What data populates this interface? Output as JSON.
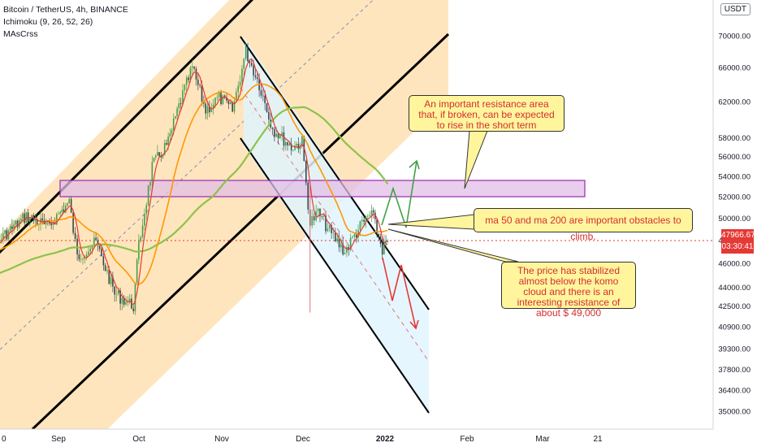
{
  "legend": {
    "symbol": "Bitcoin / TetherUS, 4h, BINANCE",
    "ichimoku": "Ichimoku (9, 26, 52, 26)",
    "mas": "MAsCrss"
  },
  "currency": "USDT",
  "last_price": {
    "value": "47966.67",
    "countdown": "03:30:41"
  },
  "chart_data": {
    "type": "line",
    "title": "",
    "yscale": "log",
    "ylim": [
      34000,
      77000
    ],
    "y_ticks": [
      "35000.00",
      "36400.00",
      "37800.00",
      "39300.00",
      "40900.00",
      "42500.00",
      "44000.00",
      "46000.00",
      "48000.00",
      "50000.00",
      "52000.00",
      "54000.00",
      "56000.00",
      "58000.00",
      "62000.00",
      "66000.00",
      "70000.00"
    ],
    "x_ticks": [
      "0",
      "Sep",
      "Oct",
      "Nov",
      "Dec",
      "2022",
      "Feb",
      "Mar",
      "21"
    ],
    "series": [
      {
        "values": [
          {
            "x": "Jul 21",
            "y": 45500
          },
          {
            "x": "Jul 28",
            "y": 46800
          },
          {
            "x": "Aug 5",
            "y": 47000
          },
          {
            "x": "Aug 12",
            "y": 48500
          },
          {
            "x": "Aug 20",
            "y": 50200
          },
          {
            "x": "Aug 28",
            "y": 49200
          },
          {
            "x": "Sep 5",
            "y": 51500
          },
          {
            "x": "Sep 8",
            "y": 46500
          },
          {
            "x": "Sep 15",
            "y": 47800
          },
          {
            "x": "Sep 22",
            "y": 43500
          },
          {
            "x": "Sep 29",
            "y": 42500
          },
          {
            "x": "Oct 1",
            "y": 47500
          },
          {
            "x": "Oct 6",
            "y": 55000
          },
          {
            "x": "Oct 12",
            "y": 57500
          },
          {
            "x": "Oct 16",
            "y": 61500
          },
          {
            "x": "Oct 21",
            "y": 66000
          },
          {
            "x": "Oct 26",
            "y": 61000
          },
          {
            "x": "Oct 31",
            "y": 62500
          },
          {
            "x": "Nov 5",
            "y": 61000
          },
          {
            "x": "Nov 10",
            "y": 68000
          },
          {
            "x": "Nov 15",
            "y": 64000
          },
          {
            "x": "Nov 20",
            "y": 59000
          },
          {
            "x": "Nov 27",
            "y": 57000
          },
          {
            "x": "Dec 1",
            "y": 57500
          },
          {
            "x": "Dec 4",
            "y": 49500
          },
          {
            "x": "Dec 7",
            "y": 50500
          },
          {
            "x": "Dec 12",
            "y": 48500
          },
          {
            "x": "Dec 17",
            "y": 47000
          },
          {
            "x": "Dec 22",
            "y": 49000
          },
          {
            "x": "Dec 27",
            "y": 50500
          },
          {
            "x": "Dec 31",
            "y": 47200
          },
          {
            "x": "Jan 2",
            "y": 47966
          }
        ]
      }
    ],
    "annotations": [
      {
        "id": "resistance",
        "text": "An important resistance area that, if broken, can be expected to rise in the short term"
      },
      {
        "id": "ma",
        "text": "ma 50 and ma 200 are important obstacles to climb."
      },
      {
        "id": "stabilized",
        "text": "The price has stabilized almost below the komo cloud and there is an interesting resistance of about $ 49,000"
      }
    ],
    "colors": {
      "channel_up": "#ffe0b2",
      "channel_down": "#e1f5fe",
      "zone": "#e1bee7",
      "zone_border": "#9c27b0",
      "bull_arrow": "#43a047",
      "bear_arrow": "#e53935",
      "ma50": "#ff9800",
      "ma200": "#8bc34a",
      "tenkan": "#e53935"
    }
  }
}
